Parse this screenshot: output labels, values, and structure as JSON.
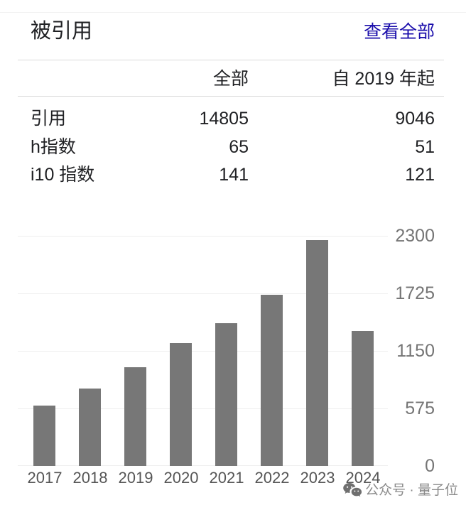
{
  "header": {
    "title": "被引用",
    "view_all": "查看全部"
  },
  "table": {
    "columns": [
      "全部",
      "自 2019 年起"
    ],
    "rows": [
      {
        "label": "引用",
        "all": "14805",
        "since_2019": "9046"
      },
      {
        "label": "h指数",
        "all": "65",
        "since_2019": "51"
      },
      {
        "label": "i10 指数",
        "all": "141",
        "since_2019": "121"
      }
    ]
  },
  "chart_data": {
    "type": "bar",
    "categories": [
      "2017",
      "2018",
      "2019",
      "2020",
      "2021",
      "2022",
      "2023",
      "2024"
    ],
    "values": [
      600,
      775,
      990,
      1230,
      1430,
      1710,
      2260,
      1350
    ],
    "title": "",
    "xlabel": "",
    "ylabel": "",
    "ylim": [
      0,
      2300
    ],
    "yticks": [
      0,
      575,
      1150,
      1725,
      2300
    ],
    "grid": true,
    "legend": "none",
    "bar_color": "#777777"
  },
  "colors": {
    "link": "#1a0dab",
    "text": "#202124",
    "bar": "#777777",
    "gridline": "#efefef",
    "tick_label": "#757575",
    "year_label": "#555555",
    "watermark": "#8a8a8a"
  },
  "watermark": {
    "icon": "wechat-icon",
    "text": "公众号 · 量子位"
  }
}
